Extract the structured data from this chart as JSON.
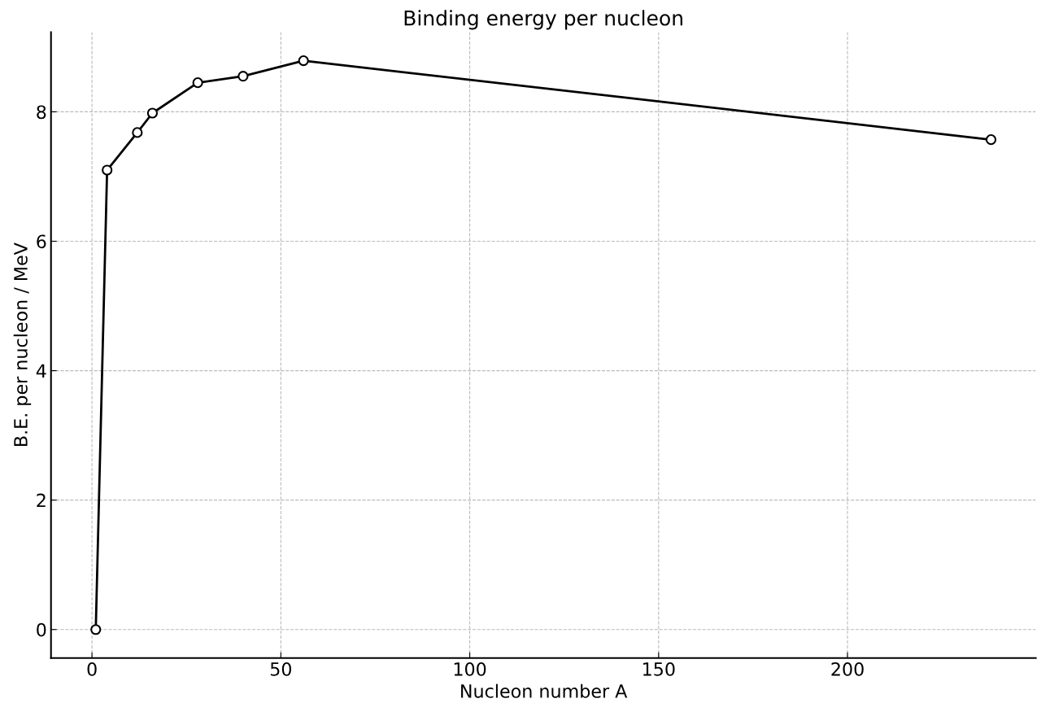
{
  "chart_data": {
    "type": "line",
    "title": "Binding energy per nucleon",
    "xlabel": "Nucleon number A",
    "ylabel": "B.E. per nucleon / MeV",
    "x": [
      1,
      4,
      12,
      16,
      28,
      40,
      56,
      238
    ],
    "series": [
      {
        "color": "#000000",
        "values": [
          0,
          7.1,
          7.68,
          7.98,
          8.45,
          8.55,
          8.79,
          7.57
        ]
      }
    ],
    "xlim": [
      -10.85,
      249.85
    ],
    "ylim": [
      -0.44,
      9.23
    ],
    "xticks": [
      0,
      50,
      100,
      150,
      200
    ],
    "yticks": [
      0,
      2,
      4,
      6,
      8
    ],
    "grid": true,
    "marker": "circle",
    "line_style": "solid",
    "legend": false
  }
}
